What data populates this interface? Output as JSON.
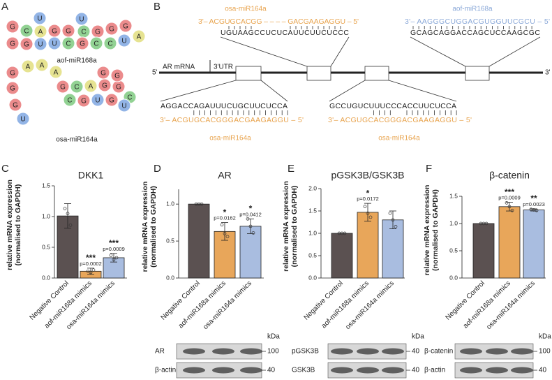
{
  "panel_labels": [
    "A",
    "B",
    "C",
    "D",
    "E",
    "F"
  ],
  "rna": [
    {
      "name": "aof-miR168a",
      "bases": [
        "U",
        "U",
        "G",
        "C",
        "A",
        "G",
        "G",
        "C",
        "G",
        "G",
        "G",
        "A",
        "G",
        "G",
        "U",
        "U",
        "C",
        "G",
        "C",
        "C",
        "U"
      ]
    },
    {
      "name": "osa-miR164a",
      "bases": [
        "A",
        "G",
        "A",
        "A",
        "G",
        "G",
        "U",
        "G",
        "C",
        "A",
        "G",
        "G",
        "C",
        "C",
        "G",
        "U",
        "G",
        "U",
        "G",
        "G"
      ]
    }
  ],
  "alignment": {
    "top_left": {
      "mirna": "osa-miR164a",
      "mirna_seq": "3'– ACGUGCACGG – – – – GACGAAGAGGU – 5'",
      "target_seq": "UGUAAGCCUCUCAUUCUUCUCCC"
    },
    "top_right": {
      "mirna": "aof-miR168a",
      "mirna_seq": "3'– AAGGGCUGGACGUGGUUCGCU – 5'",
      "target_seq": "GCAGCAGGACCAGCUCCAAGCGC"
    },
    "bottom_left": {
      "mirna": "osa-miR164a",
      "mirna_seq": "3'– ACGUGCACGGGACGAAGAGGU – 5'",
      "target_seq": "AGGACCAGAUUUCUGCUUCUCCA"
    },
    "bottom_right": {
      "mirna": "osa-miR164a",
      "mirna_seq": "3'– ACGUGCACGGGACGAAGAGGU – 5'",
      "target_seq": "GCCUGUCUUUCCCACCUUCUCCA"
    },
    "mrna_label": "AR mRNA",
    "utr_label": "3'UTR",
    "five_prime": "5'",
    "three_prime": "3'"
  },
  "chart_data": [
    {
      "type": "bar",
      "title": "DKK1",
      "ylabel": [
        "relative mRNA expression",
        "(normalised to GAPDH)"
      ],
      "categories": [
        "Negative Control",
        "aof-miR168a mimics",
        "osa-miR164a mimics"
      ],
      "values": [
        1.01,
        0.11,
        0.33
      ],
      "errors": [
        0.2,
        0.05,
        0.07
      ],
      "points": [
        [
          1.13,
          1.05,
          0.86
        ],
        [
          0.11,
          0.09,
          0.13
        ],
        [
          0.37,
          0.3,
          0.33
        ]
      ],
      "significance": [
        null,
        "***",
        "***"
      ],
      "p_labels": [
        null,
        "p=0.0002",
        "p=0.0009"
      ],
      "colors": [
        "#5b5151",
        "#e8a65a",
        "#a9bde0"
      ],
      "ylim": [
        0,
        1.5
      ],
      "yticks": [
        {
          "value": 0,
          "label": "0.0"
        },
        0.5,
        {
          "value": 1,
          "label": "1.0"
        },
        1.5
      ]
    },
    {
      "type": "bar",
      "title": "AR",
      "ylabel": [
        "relative mRNA expression",
        "(normalised to GAPDH)"
      ],
      "categories": [
        "Negative Control",
        "aof-miR168a mimics",
        "osa-miR164a mimics"
      ],
      "values": [
        1.0,
        0.63,
        0.7
      ],
      "errors": [
        0,
        0.12,
        0.1
      ],
      "points": [
        [
          1.0,
          1.0,
          1.0
        ],
        [
          0.72,
          0.6,
          0.56
        ],
        [
          0.8,
          0.7,
          0.61
        ]
      ],
      "significance": [
        null,
        "*",
        "*"
      ],
      "p_labels": [
        null,
        "p=0.0162",
        "p=0.0412"
      ],
      "colors": [
        "#5b5151",
        "#e8a65a",
        "#a9bde0"
      ],
      "ylim": [
        0,
        1.2
      ],
      "yticks": [
        {
          "value": 0,
          "label": "0.0"
        },
        0.5,
        {
          "value": 1,
          "label": "1.0"
        }
      ]
    },
    {
      "type": "bar",
      "title": "pGSK3B/GSK3B",
      "ylabel": [
        "relative mRNA expression",
        "(normalised to GAPDH)"
      ],
      "categories": [
        "Negative Control",
        "aof-miR168a mimics",
        "osa-miR164a mimics"
      ],
      "values": [
        1.0,
        1.47,
        1.3
      ],
      "errors": [
        0,
        0.2,
        0.2
      ],
      "points": [
        [
          1.0,
          1.0,
          1.0
        ],
        [
          1.6,
          1.45,
          1.36
        ],
        [
          1.45,
          1.3,
          1.15
        ]
      ],
      "significance": [
        null,
        "*",
        null
      ],
      "p_labels": [
        null,
        "p=0.0172",
        null
      ],
      "colors": [
        "#5b5151",
        "#e8a65a",
        "#a9bde0"
      ],
      "ylim": [
        0,
        2
      ],
      "yticks": [
        {
          "value": 0,
          "label": "0.0"
        },
        0.5,
        {
          "value": 1,
          "label": "1.0"
        },
        1.5,
        {
          "value": 2,
          "label": "2.0"
        }
      ]
    },
    {
      "type": "bar",
      "title": "β-catenin",
      "ylabel": [
        "relative mRNA expression",
        "(normalised to GAPDH)"
      ],
      "categories": [
        "Negative Control",
        "aof-miR168a mimics",
        "osa-miR164a mimics"
      ],
      "values": [
        1.0,
        1.31,
        1.25
      ],
      "errors": [
        0,
        0.08,
        0.02
      ],
      "points": [
        [
          1.0,
          1.0,
          1.0
        ],
        [
          1.38,
          1.31,
          1.24
        ],
        [
          1.26,
          1.25,
          1.24
        ]
      ],
      "significance": [
        null,
        "***",
        "**"
      ],
      "p_labels": [
        null,
        "p=0.0009",
        "p=0.0023"
      ],
      "colors": [
        "#5b5151",
        "#e8a65a",
        "#a9bde0"
      ],
      "ylim": [
        0,
        1.5
      ],
      "yticks": [
        {
          "value": 0,
          "label": "0.0"
        },
        0.5,
        {
          "value": 1,
          "label": "1.0"
        },
        1.5
      ]
    }
  ],
  "blots": [
    {
      "unit": "kDa",
      "rows": [
        {
          "label": "AR",
          "marker": "100"
        },
        {
          "label": "β-actin",
          "marker": "40"
        }
      ]
    },
    {
      "unit": "kDa",
      "rows": [
        {
          "label": "pGSK3B",
          "marker": "40"
        },
        {
          "label": "GSK3B",
          "marker": "40"
        }
      ]
    },
    {
      "unit": "kDa",
      "rows": [
        {
          "label": "β-catenin",
          "marker": "100"
        },
        {
          "label": "β-actin",
          "marker": "40"
        }
      ]
    }
  ]
}
